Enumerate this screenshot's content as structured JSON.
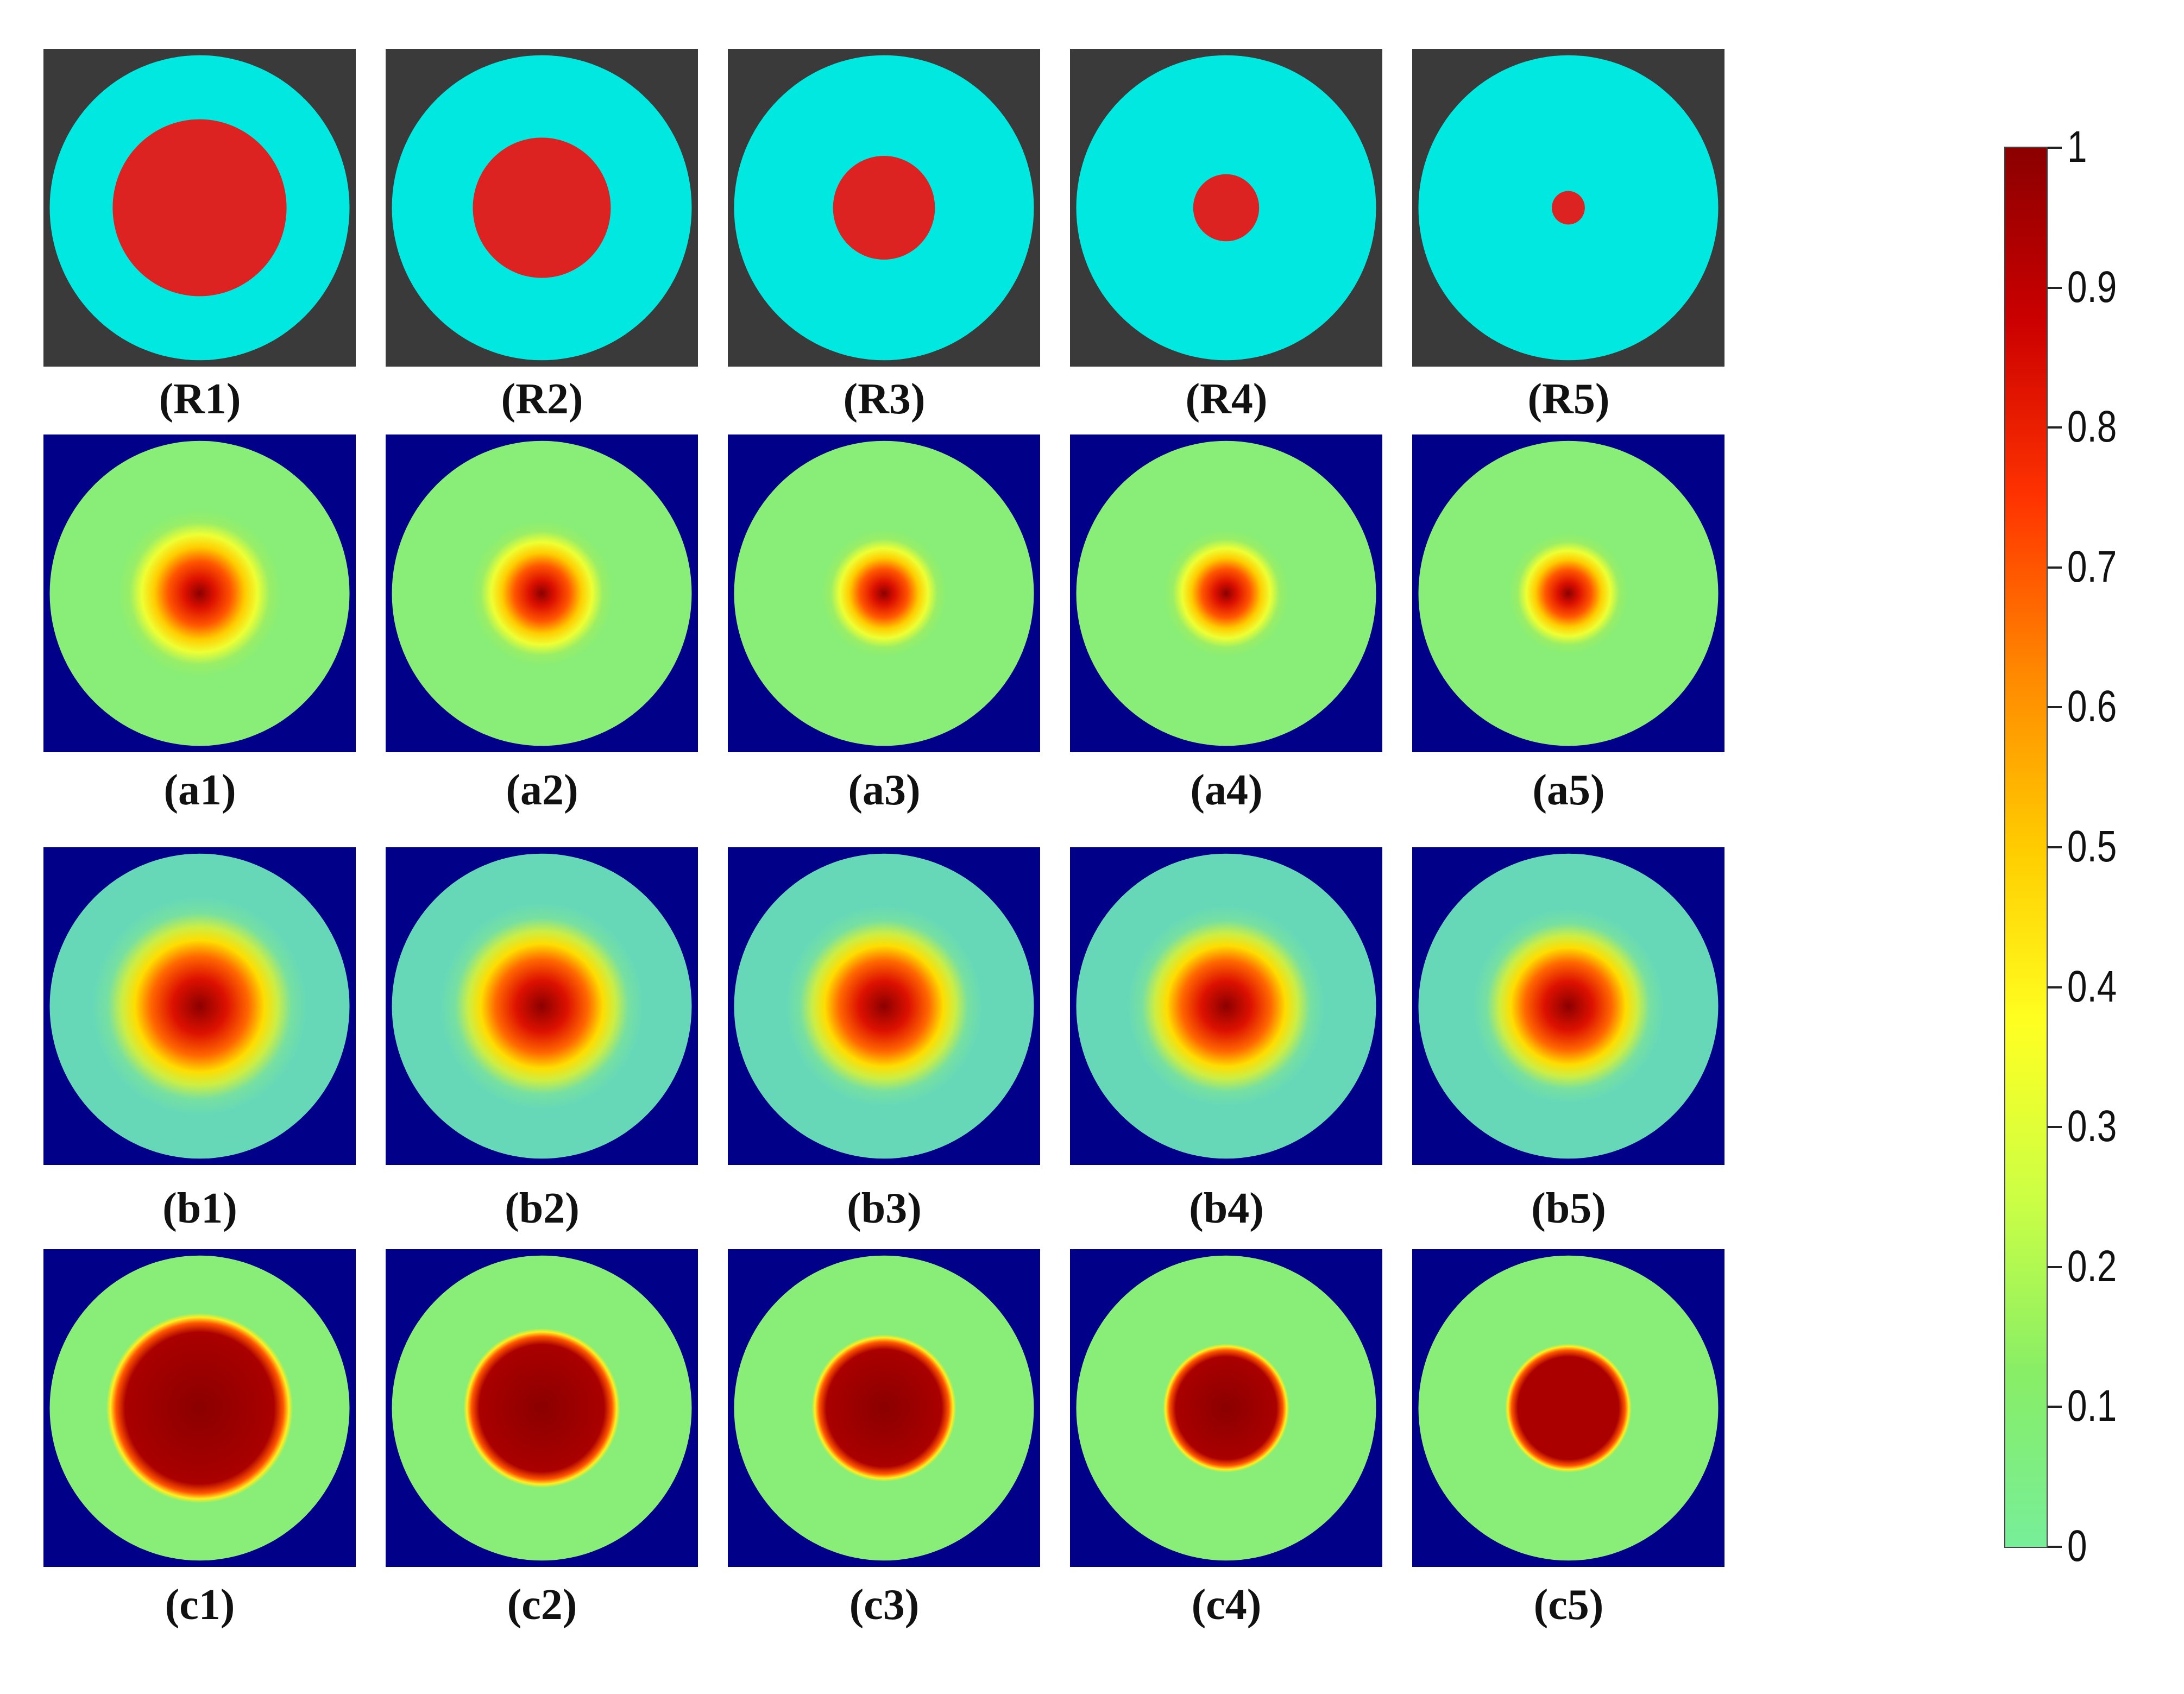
{
  "figure": {
    "rows": [
      {
        "row_id": "R",
        "kind": "reference",
        "panels": [
          {
            "label": "(R1)",
            "inclusion_radius": 0.58
          },
          {
            "label": "(R2)",
            "inclusion_radius": 0.46
          },
          {
            "label": "(R3)",
            "inclusion_radius": 0.34
          },
          {
            "label": "(R4)",
            "inclusion_radius": 0.22
          },
          {
            "label": "(R5)",
            "inclusion_radius": 0.11
          }
        ]
      },
      {
        "row_id": "a",
        "kind": "smooth",
        "panels": [
          {
            "label": "(a1)",
            "inclusion_radius": 0.55,
            "peak": 1.0
          },
          {
            "label": "(a2)",
            "inclusion_radius": 0.48,
            "peak": 1.0
          },
          {
            "label": "(a3)",
            "inclusion_radius": 0.42,
            "peak": 1.0
          },
          {
            "label": "(a4)",
            "inclusion_radius": 0.42,
            "peak": 1.0
          },
          {
            "label": "(a5)",
            "inclusion_radius": 0.4,
            "peak": 1.0
          }
        ]
      },
      {
        "row_id": "b",
        "kind": "broad",
        "panels": [
          {
            "label": "(b1)",
            "inclusion_radius": 0.72,
            "peak": 1.0
          },
          {
            "label": "(b2)",
            "inclusion_radius": 0.68,
            "peak": 1.0
          },
          {
            "label": "(b3)",
            "inclusion_radius": 0.66,
            "peak": 1.0
          },
          {
            "label": "(b4)",
            "inclusion_radius": 0.66,
            "peak": 1.0
          },
          {
            "label": "(b5)",
            "inclusion_radius": 0.64,
            "peak": 1.0
          }
        ]
      },
      {
        "row_id": "c",
        "kind": "sharp",
        "panels": [
          {
            "label": "(c1)",
            "inclusion_radius": 0.62,
            "peak": 1.0
          },
          {
            "label": "(c2)",
            "inclusion_radius": 0.52,
            "peak": 1.0
          },
          {
            "label": "(c3)",
            "inclusion_radius": 0.48,
            "peak": 1.0
          },
          {
            "label": "(c4)",
            "inclusion_radius": 0.42,
            "peak": 1.0
          },
          {
            "label": "(c5)",
            "inclusion_radius": 0.42,
            "peak": 0.95
          }
        ]
      }
    ]
  },
  "colorbar": {
    "min": 0,
    "max": 1,
    "ticks": [
      "1",
      "0.9",
      "0.8",
      "0.7",
      "0.6",
      "0.5",
      "0.4",
      "0.3",
      "0.2",
      "0.1",
      "0"
    ],
    "gradient_stops": [
      "#8b0000",
      "#cc0000",
      "#ff3300",
      "#ff8800",
      "#ffcc00",
      "#ffff22",
      "#ccff44",
      "#88ee66",
      "#77ee99"
    ]
  },
  "colors": {
    "reference_background": "#3a3a3a",
    "reference_disk": "#00e8e0",
    "reference_inclusion": "#dd2222",
    "reconstruction_background": "#000088"
  }
}
